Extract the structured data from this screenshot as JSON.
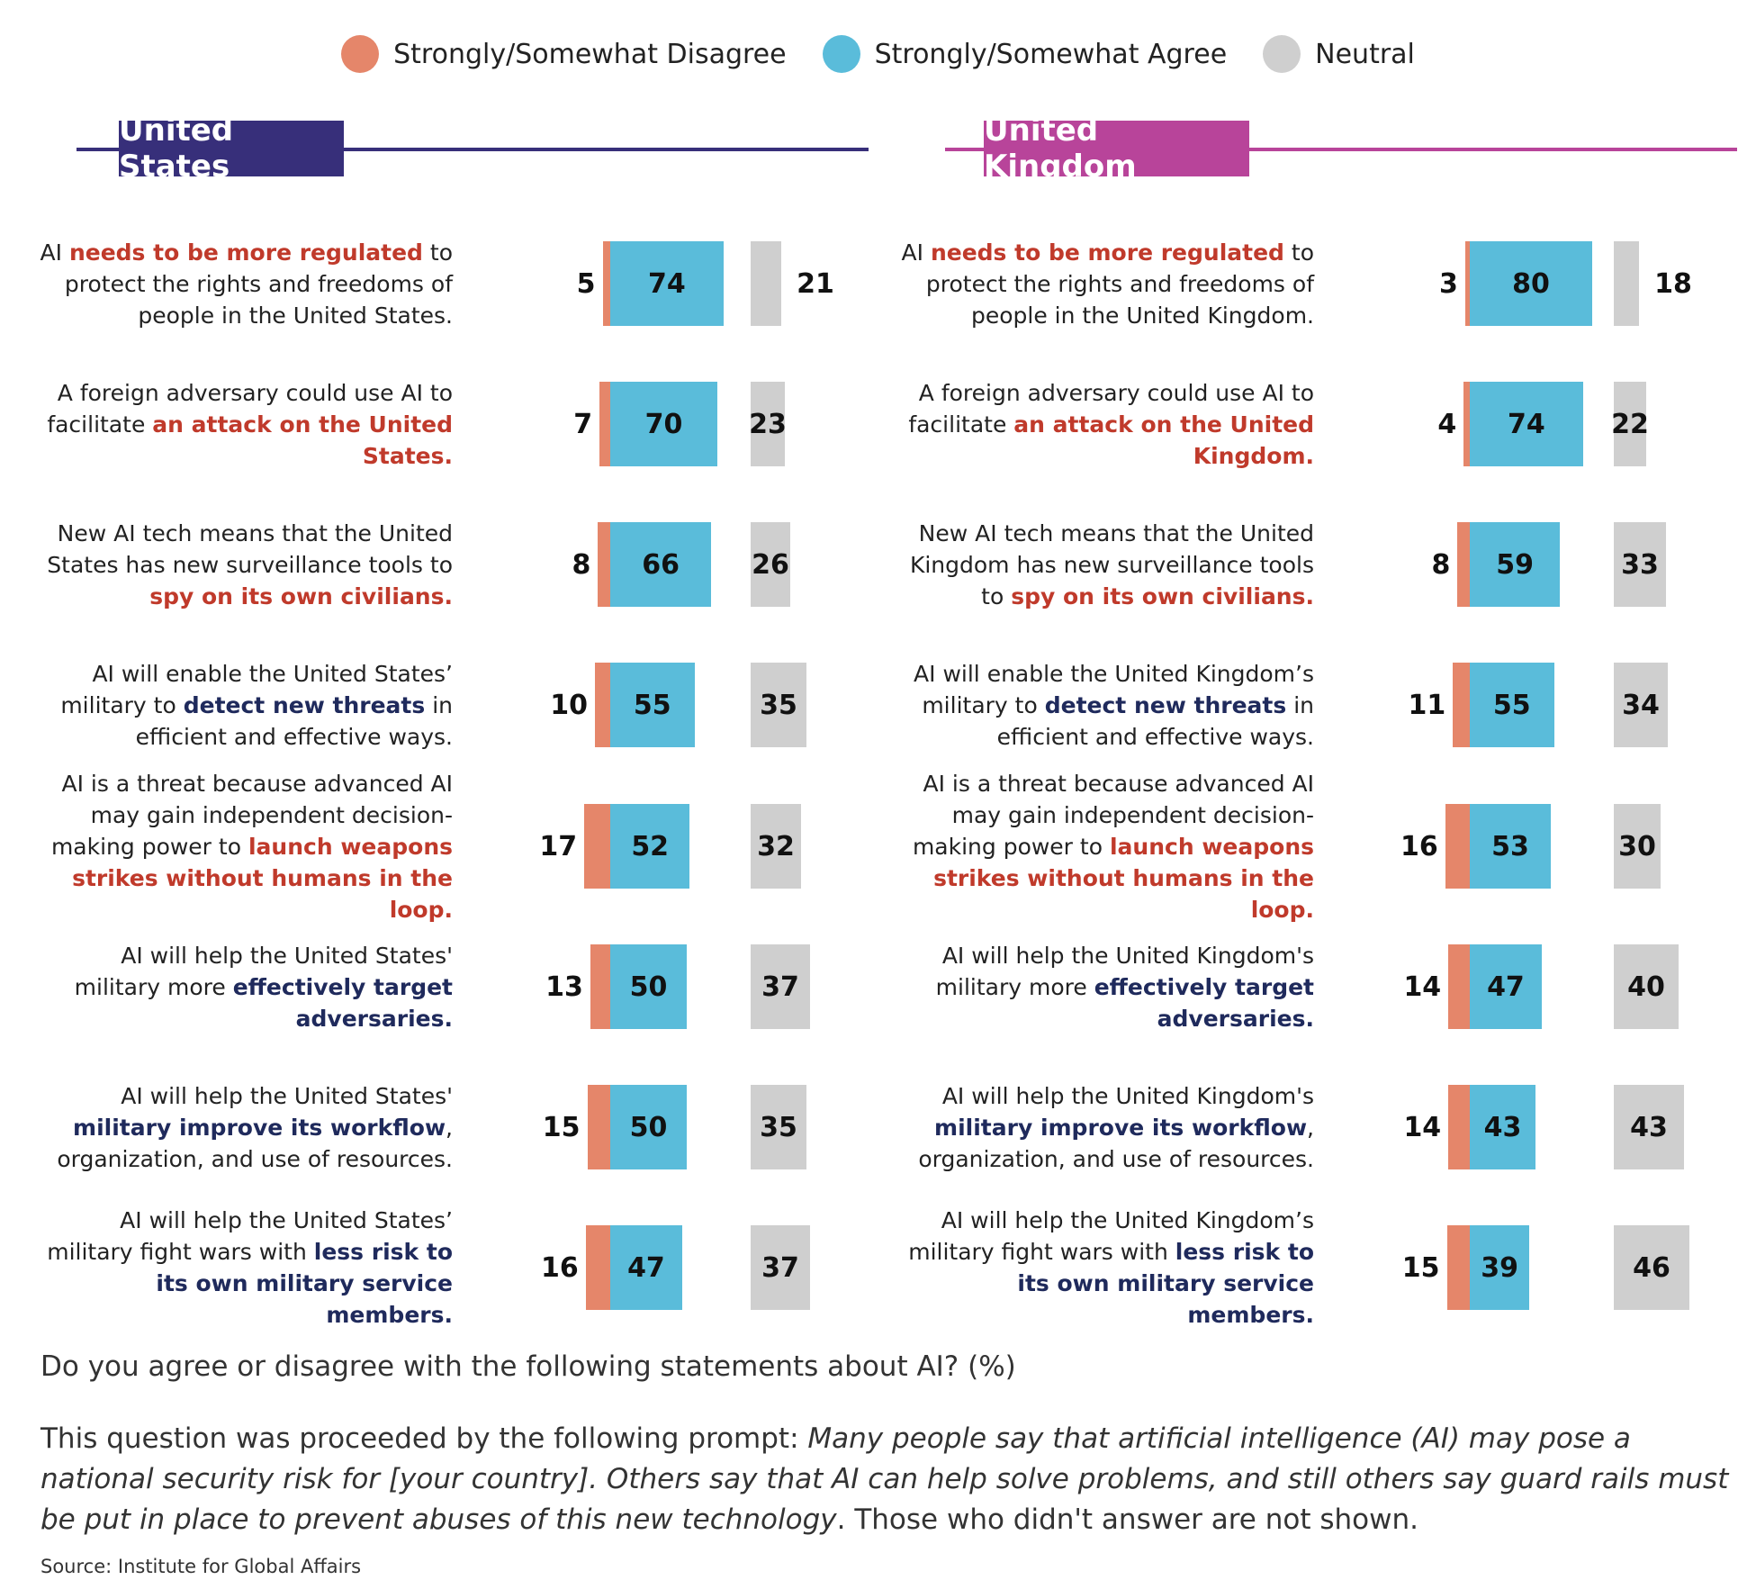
{
  "colors": {
    "disagree": "#e5866a",
    "agree": "#5abcda",
    "neutral": "#cfcfcf",
    "us_header": "#372f7a",
    "uk_header": "#b8449a",
    "highlight_red": "#c03a2b",
    "highlight_navy": "#1f2a5c"
  },
  "legend": [
    {
      "label": "Strongly/Somewhat Disagree",
      "color_key": "disagree"
    },
    {
      "label": "Strongly/Somewhat Agree",
      "color_key": "agree"
    },
    {
      "label": "Neutral",
      "color_key": "neutral"
    }
  ],
  "chart_data": [
    {
      "type": "bar",
      "title": "United States",
      "series_order": [
        "Strongly/Somewhat Disagree",
        "Strongly/Somewhat Agree",
        "Neutral"
      ],
      "rows": [
        {
          "label": [
            {
              "t": "AI "
            },
            {
              "t": "needs to be more regulated",
              "hl": "red"
            },
            {
              "t": " to protect the rights and freedoms of people in the United States."
            }
          ],
          "disagree": 5,
          "agree": 74,
          "neutral": 21
        },
        {
          "label": [
            {
              "t": "A foreign adversary could use AI to facilitate "
            },
            {
              "t": "an attack on the United States.",
              "hl": "red"
            }
          ],
          "disagree": 7,
          "agree": 70,
          "neutral": 23
        },
        {
          "label": [
            {
              "t": "New AI tech means that the United States has new surveillance tools to "
            },
            {
              "t": "spy on its own civilians.",
              "hl": "red"
            }
          ],
          "disagree": 8,
          "agree": 66,
          "neutral": 26
        },
        {
          "label": [
            {
              "t": "AI will enable the United States’ military to "
            },
            {
              "t": "detect new threats",
              "hl": "navy"
            },
            {
              "t": " in efficient and effective ways."
            }
          ],
          "disagree": 10,
          "agree": 55,
          "neutral": 35
        },
        {
          "label": [
            {
              "t": "AI is a threat because advanced AI may gain independent decision-making power to "
            },
            {
              "t": "launch weapons strikes without humans in the loop.",
              "hl": "red"
            }
          ],
          "disagree": 17,
          "agree": 52,
          "neutral": 32
        },
        {
          "label": [
            {
              "t": "AI will help the United States' military more "
            },
            {
              "t": "effectively target adversaries.",
              "hl": "navy"
            }
          ],
          "disagree": 13,
          "agree": 50,
          "neutral": 37
        },
        {
          "label": [
            {
              "t": "AI will help the United States' "
            },
            {
              "t": "military improve its workflow",
              "hl": "navy"
            },
            {
              "t": ", organization, and use of resources."
            }
          ],
          "disagree": 15,
          "agree": 50,
          "neutral": 35
        },
        {
          "label": [
            {
              "t": "AI will help the United States’ military fight wars with "
            },
            {
              "t": "less risk to its own military service members.",
              "hl": "navy"
            }
          ],
          "disagree": 16,
          "agree": 47,
          "neutral": 37
        }
      ]
    },
    {
      "type": "bar",
      "title": "United Kingdom",
      "series_order": [
        "Strongly/Somewhat Disagree",
        "Strongly/Somewhat Agree",
        "Neutral"
      ],
      "rows": [
        {
          "label": [
            {
              "t": "AI "
            },
            {
              "t": "needs to be more regulated",
              "hl": "red"
            },
            {
              "t": " to protect the rights and freedoms of people in the United Kingdom."
            }
          ],
          "disagree": 3,
          "agree": 80,
          "neutral": 18
        },
        {
          "label": [
            {
              "t": "A foreign adversary could use AI to facilitate "
            },
            {
              "t": "an attack on the United Kingdom.",
              "hl": "red"
            }
          ],
          "disagree": 4,
          "agree": 74,
          "neutral": 22
        },
        {
          "label": [
            {
              "t": "New AI tech means that the United Kingdom has new surveillance tools to "
            },
            {
              "t": "spy on its own civilians.",
              "hl": "red"
            }
          ],
          "disagree": 8,
          "agree": 59,
          "neutral": 33
        },
        {
          "label": [
            {
              "t": "AI will enable the United Kingdom’s military to "
            },
            {
              "t": "detect new threats",
              "hl": "navy"
            },
            {
              "t": " in efficient and effective ways."
            }
          ],
          "disagree": 11,
          "agree": 55,
          "neutral": 34
        },
        {
          "label": [
            {
              "t": "AI is a threat because advanced AI may gain independent decision-making power to "
            },
            {
              "t": "launch weapons strikes without humans in the loop.",
              "hl": "red"
            }
          ],
          "disagree": 16,
          "agree": 53,
          "neutral": 30
        },
        {
          "label": [
            {
              "t": "AI will help the United Kingdom's military more "
            },
            {
              "t": "effectively target adversaries.",
              "hl": "navy"
            }
          ],
          "disagree": 14,
          "agree": 47,
          "neutral": 40
        },
        {
          "label": [
            {
              "t": "AI will help the United Kingdom's "
            },
            {
              "t": "military improve its workflow",
              "hl": "navy"
            },
            {
              "t": ", organization, and use of resources."
            }
          ],
          "disagree": 14,
          "agree": 43,
          "neutral": 43
        },
        {
          "label": [
            {
              "t": "AI will help the United Kingdom’s military fight wars with "
            },
            {
              "t": "less risk to its own military service members.",
              "hl": "navy"
            }
          ],
          "disagree": 15,
          "agree": 39,
          "neutral": 46
        }
      ]
    }
  ],
  "footer": {
    "question": "Do you agree or disagree with the following statements about AI? (%)",
    "prompt_intro": "This question was proceeded by the following prompt: ",
    "prompt_italic": "Many people say that artificial intelligence (AI) may pose a national security risk for [your country]. Others say that AI can help solve problems, and still others say guard rails must be put in place to prevent abuses of this new technology",
    "prompt_outro": ". Those who didn't answer are not shown.",
    "source": "Source: Institute for Global Affairs"
  }
}
